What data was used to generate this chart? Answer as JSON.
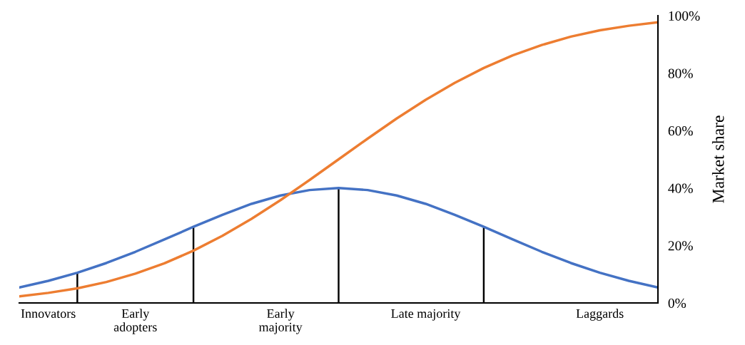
{
  "chart_data": {
    "type": "line",
    "ylabel": "Market share",
    "categories": [
      null,
      "Innovators",
      null,
      null,
      "Early\nadopters",
      null,
      null,
      null,
      null,
      "Early\nmajority",
      null,
      null,
      null,
      null,
      "Late majority",
      null,
      null,
      null,
      null,
      null,
      "Laggards",
      null,
      null
    ],
    "ylim": [
      0,
      100
    ],
    "yticks": [
      {
        "value": 0,
        "label": "0%"
      },
      {
        "value": 20,
        "label": "20%"
      },
      {
        "value": 40,
        "label": "40%"
      },
      {
        "value": 60,
        "label": "60%"
      },
      {
        "value": 80,
        "label": "80%"
      },
      {
        "value": 100,
        "label": "100%"
      }
    ],
    "grid": false,
    "legend": false,
    "series": [
      {
        "color": "#4472c4",
        "values": [
          5.4,
          7.7,
          10.5,
          13.9,
          17.8,
          22.1,
          26.5,
          30.7,
          34.5,
          37.4,
          39.3,
          40,
          39.3,
          37.4,
          34.5,
          30.7,
          26.5,
          22.1,
          17.8,
          13.9,
          10.5,
          7.7,
          5.4
        ]
      },
      {
        "color": "#ed7d31",
        "values": [
          2.3,
          3.5,
          5.1,
          7.3,
          10.2,
          13.8,
          18.2,
          23.4,
          29.3,
          35.8,
          42.8,
          50,
          57.2,
          64.2,
          70.7,
          76.6,
          81.8,
          86.2,
          89.8,
          92.7,
          94.9,
          96.5,
          97.7
        ]
      },
      {
        "type": "bar",
        "color": "#000000",
        "values": [
          null,
          null,
          10.5,
          null,
          null,
          null,
          26.5,
          null,
          null,
          null,
          null,
          40,
          null,
          null,
          null,
          null,
          26.5,
          null,
          null,
          null,
          null,
          null,
          null
        ]
      }
    ]
  }
}
